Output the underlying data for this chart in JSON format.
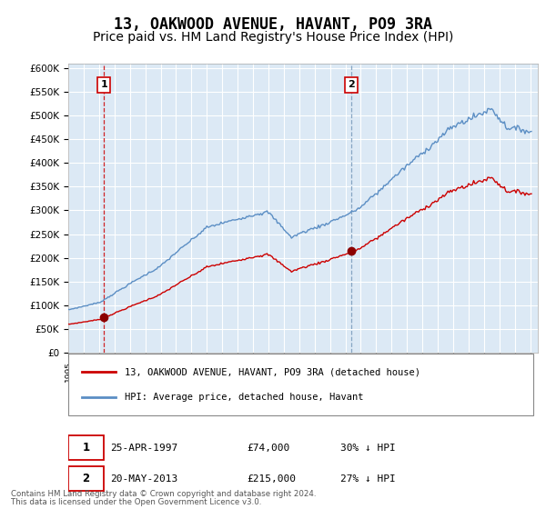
{
  "title": "13, OAKWOOD AVENUE, HAVANT, PO9 3RA",
  "subtitle": "Price paid vs. HM Land Registry's House Price Index (HPI)",
  "title_fontsize": 12,
  "subtitle_fontsize": 10,
  "background_color": "#ffffff",
  "plot_bg_color": "#dce9f5",
  "grid_color": "#ffffff",
  "ylabel_vals": [
    0,
    50000,
    100000,
    150000,
    200000,
    250000,
    300000,
    350000,
    400000,
    450000,
    500000,
    550000,
    600000
  ],
  "ylabel_labels": [
    "£0",
    "£50K",
    "£100K",
    "£150K",
    "£200K",
    "£250K",
    "£300K",
    "£350K",
    "£400K",
    "£450K",
    "£500K",
    "£550K",
    "£600K"
  ],
  "ylim": [
    0,
    610000
  ],
  "xlim_start": 1995.0,
  "xlim_end": 2025.5,
  "sale1_year": 1997.32,
  "sale1_price": 74000,
  "sale1_label": "1",
  "sale2_year": 2013.38,
  "sale2_price": 215000,
  "sale2_label": "2",
  "legend_line1": "13, OAKWOOD AVENUE, HAVANT, PO9 3RA (detached house)",
  "legend_line2": "HPI: Average price, detached house, Havant",
  "footer_line1": "Contains HM Land Registry data © Crown copyright and database right 2024.",
  "footer_line2": "This data is licensed under the Open Government Licence v3.0.",
  "line_color_sale": "#cc0000",
  "line_color_hpi": "#5b8ec4",
  "dot_color": "#8b0000",
  "vline1_color": "#cc0000",
  "vline1_style": "--",
  "vline2_color": "#7799bb",
  "vline2_style": "--",
  "box_color": "#cc0000",
  "label_box_color": "#cc0000"
}
